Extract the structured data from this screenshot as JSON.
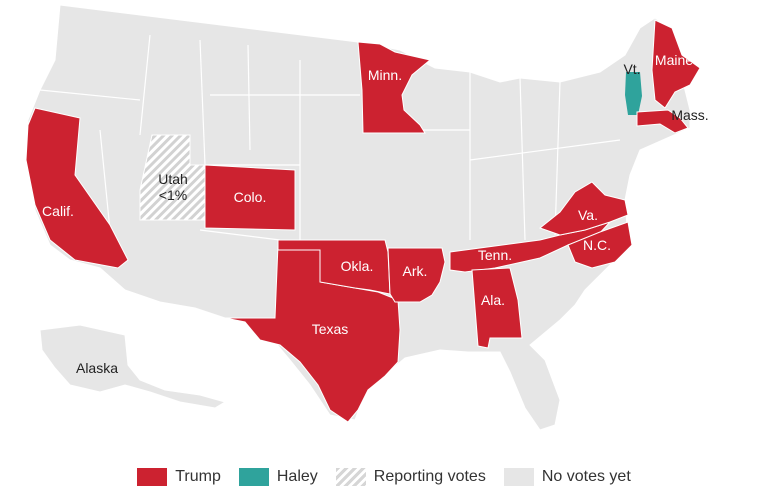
{
  "colors": {
    "trump": "#cc2230",
    "haley": "#2fa39c",
    "no_votes": "#e6e6e6",
    "reporting": "#d6d6d6",
    "state_border": "#ffffff"
  },
  "state_labels": {
    "minn": "Minn.",
    "maine": "Maine",
    "vt": "Vt.",
    "mass": "Mass.",
    "utah": "Utah",
    "utah_pct": "<1%",
    "colo": "Colo.",
    "calif": "Calif.",
    "va": "Va.",
    "tenn": "Tenn.",
    "nc": "N.C.",
    "okla": "Okla.",
    "ark": "Ark.",
    "ala": "Ala.",
    "texas": "Texas",
    "alaska": "Alaska"
  },
  "legend": {
    "trump": "Trump",
    "haley": "Haley",
    "reporting": "Reporting votes",
    "no_votes": "No votes yet"
  }
}
